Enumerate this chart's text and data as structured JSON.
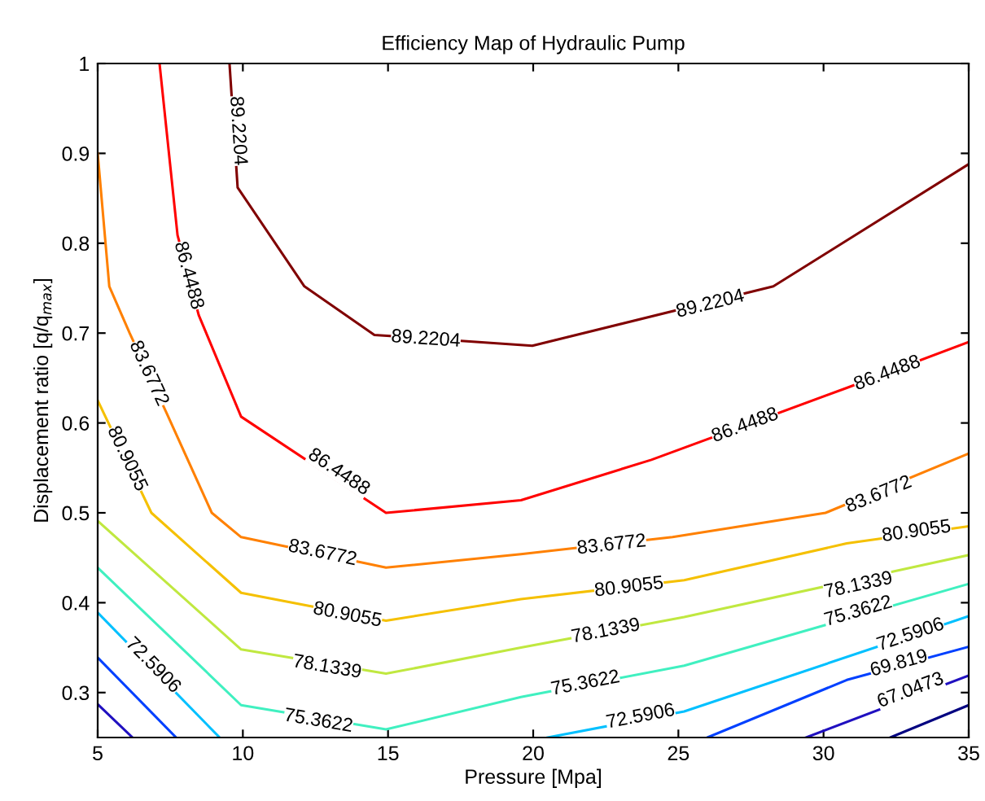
{
  "chart_data": {
    "type": "line",
    "title": "Efficiency Map of Hydraulic Pump",
    "xlabel": "Pressure [Mpa]",
    "ylabel": "Displacement ratio [q/q$_{max}$]",
    "xlim": [
      5,
      35
    ],
    "ylim": [
      0.25,
      1
    ],
    "xticks": [
      5,
      10,
      15,
      20,
      25,
      30,
      35
    ],
    "yticks": [
      0.3,
      0.4,
      0.5,
      0.6,
      0.7,
      0.8,
      0.9,
      1
    ],
    "grid": false,
    "series": [
      {
        "color": "#800000",
        "x": [
          9.54,
          9.82,
          12.12,
          14.53,
          19.97,
          28.27,
          35
        ],
        "values": [
          1,
          0.862,
          0.752,
          0.698,
          0.686,
          0.752,
          0.888
        ]
      },
      {
        "color": "#ff0000",
        "x": [
          7.13,
          7.75,
          8.48,
          9.94,
          14.93,
          19.58,
          24.07,
          30.8,
          35
        ],
        "values": [
          1,
          0.809,
          0.72,
          0.607,
          0.5,
          0.514,
          0.559,
          0.639,
          0.69
        ]
      },
      {
        "color": "#ff8000",
        "x": [
          5.0,
          5.4,
          6.1,
          7.36,
          8.93,
          9.94,
          14.93,
          19.58,
          24.8,
          30.07,
          35
        ],
        "values": [
          0.9,
          0.752,
          0.7,
          0.612,
          0.5,
          0.473,
          0.439,
          0.454,
          0.473,
          0.5,
          0.566
        ]
      },
      {
        "color": "#f5c000",
        "x": [
          5,
          6.85,
          9.94,
          14.93,
          19.58,
          25.2,
          30.8,
          35
        ],
        "values": [
          0.625,
          0.5,
          0.411,
          0.38,
          0.404,
          0.425,
          0.466,
          0.485
        ]
      },
      {
        "color": "#c0e840",
        "x": [
          5,
          9.94,
          14.93,
          19.58,
          25.2,
          35
        ],
        "values": [
          0.491,
          0.348,
          0.321,
          0.35,
          0.384,
          0.453
        ]
      },
      {
        "color": "#40f0c0",
        "x": [
          5,
          9.94,
          14.93,
          19.58,
          25.2,
          35
        ],
        "values": [
          0.439,
          0.286,
          0.259,
          0.295,
          0.33,
          0.421
        ]
      },
      {
        "color": "#00c0ff",
        "x": [
          5,
          9.2
        ],
        "values": [
          0.389,
          0.25
        ]
      },
      {
        "color": "#00c0ff",
        "x": [
          20.5,
          25.2,
          35
        ],
        "values": [
          0.25,
          0.279,
          0.385
        ]
      },
      {
        "color": "#0040ff",
        "x": [
          5,
          7.7
        ],
        "values": [
          0.339,
          0.25
        ]
      },
      {
        "color": "#0040ff",
        "x": [
          26.0,
          30.8,
          35
        ],
        "values": [
          0.25,
          0.314,
          0.351
        ]
      },
      {
        "color": "#2010c0",
        "x": [
          5,
          6.2
        ],
        "values": [
          0.287,
          0.25
        ]
      },
      {
        "color": "#2010c0",
        "x": [
          29.4,
          35
        ],
        "values": [
          0.25,
          0.319
        ]
      },
      {
        "color": "#000080",
        "x": [
          32.3,
          35
        ],
        "values": [
          0.25,
          0.286
        ]
      }
    ],
    "annotations": [
      {
        "text": "89.2204",
        "x": 9.82,
        "y": 0.925
      },
      {
        "text": "89.2204",
        "x": 16.3,
        "y": 0.693
      },
      {
        "text": "89.2204",
        "x": 26.1,
        "y": 0.732
      },
      {
        "text": "86.4488",
        "x": 8.12,
        "y": 0.764
      },
      {
        "text": "86.4488",
        "x": 13.3,
        "y": 0.545
      },
      {
        "text": "86.4488",
        "x": 27.3,
        "y": 0.597
      },
      {
        "text": "86.4488",
        "x": 32.2,
        "y": 0.655
      },
      {
        "text": "83.6772",
        "x": 6.75,
        "y": 0.655
      },
      {
        "text": "83.6772",
        "x": 12.74,
        "y": 0.455
      },
      {
        "text": "83.6772",
        "x": 22.7,
        "y": 0.464
      },
      {
        "text": "83.6772",
        "x": 31.9,
        "y": 0.52
      },
      {
        "text": "80.9055",
        "x": 6.0,
        "y": 0.56
      },
      {
        "text": "80.9055",
        "x": 13.6,
        "y": 0.386
      },
      {
        "text": "80.9055",
        "x": 23.3,
        "y": 0.417
      },
      {
        "text": "80.9055",
        "x": 33.2,
        "y": 0.479
      },
      {
        "text": "78.1339",
        "x": 12.9,
        "y": 0.328
      },
      {
        "text": "78.1339",
        "x": 22.5,
        "y": 0.368
      },
      {
        "text": "78.1339",
        "x": 31.2,
        "y": 0.419
      },
      {
        "text": "75.3622",
        "x": 12.6,
        "y": 0.268
      },
      {
        "text": "75.3622",
        "x": 21.8,
        "y": 0.31
      },
      {
        "text": "75.3622",
        "x": 31.2,
        "y": 0.39
      },
      {
        "text": "72.5906",
        "x": 6.9,
        "y": 0.33
      },
      {
        "text": "72.5906",
        "x": 23.7,
        "y": 0.273
      },
      {
        "text": "72.5906",
        "x": 33.0,
        "y": 0.364
      },
      {
        "text": "69.819",
        "x": 32.6,
        "y": 0.332
      },
      {
        "text": "67.0473",
        "x": 33.0,
        "y": 0.302
      }
    ]
  }
}
